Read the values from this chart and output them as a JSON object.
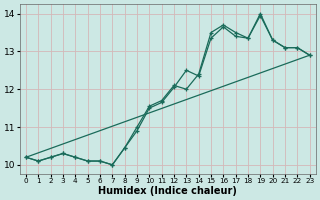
{
  "xlabel": "Humidex (Indice chaleur)",
  "background_color": "#cce8e4",
  "grid_color": "#d4b8b8",
  "line_color": "#1a6b5a",
  "xlim": [
    -0.5,
    23.5
  ],
  "ylim": [
    9.75,
    14.25
  ],
  "x_ticks": [
    0,
    1,
    2,
    3,
    4,
    5,
    6,
    7,
    8,
    9,
    10,
    11,
    12,
    13,
    14,
    15,
    16,
    17,
    18,
    19,
    20,
    21,
    22,
    23
  ],
  "y_ticks": [
    10,
    11,
    12,
    13,
    14
  ],
  "line1_x": [
    0,
    1,
    2,
    3,
    4,
    5,
    6,
    7,
    8,
    9,
    10,
    11,
    12,
    13,
    14,
    15,
    16,
    17,
    18,
    19,
    20,
    21,
    22,
    23
  ],
  "line1_y": [
    10.2,
    10.1,
    10.2,
    10.3,
    10.2,
    10.1,
    10.1,
    10.0,
    10.45,
    11.0,
    11.55,
    11.7,
    12.1,
    12.0,
    12.4,
    13.5,
    13.7,
    13.5,
    13.35,
    14.0,
    13.3,
    13.1,
    13.1,
    12.9
  ],
  "line2_x": [
    0,
    1,
    2,
    3,
    4,
    5,
    6,
    7,
    8,
    9,
    10,
    11,
    12,
    13,
    14,
    15,
    16,
    17,
    18,
    19,
    20,
    21,
    22,
    23
  ],
  "line2_y": [
    10.2,
    10.1,
    10.2,
    10.3,
    10.2,
    10.1,
    10.1,
    10.0,
    10.45,
    10.9,
    11.5,
    11.65,
    12.05,
    12.5,
    12.35,
    13.35,
    13.65,
    13.4,
    13.35,
    13.95,
    13.3,
    13.1,
    13.1,
    12.9
  ],
  "line3_x": [
    0,
    23
  ],
  "line3_y": [
    10.2,
    12.9
  ]
}
